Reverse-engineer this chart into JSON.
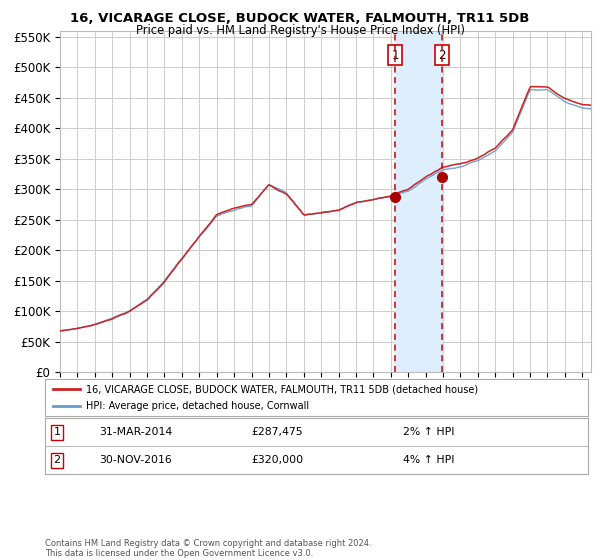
{
  "title": "16, VICARAGE CLOSE, BUDOCK WATER, FALMOUTH, TR11 5DB",
  "subtitle": "Price paid vs. HM Land Registry's House Price Index (HPI)",
  "legend_line1": "16, VICARAGE CLOSE, BUDOCK WATER, FALMOUTH, TR11 5DB (detached house)",
  "legend_line2": "HPI: Average price, detached house, Cornwall",
  "transaction1_date": "31-MAR-2014",
  "transaction1_price": "£287,475",
  "transaction1_hpi": "2% ↑ HPI",
  "transaction1_year": 2014.25,
  "transaction1_value": 287475,
  "transaction2_date": "30-NOV-2016",
  "transaction2_price": "£320,000",
  "transaction2_hpi": "4% ↑ HPI",
  "transaction2_year": 2016.917,
  "transaction2_value": 320000,
  "hpi_shade_color": "#ddeeff",
  "vline_color": "#cc0000",
  "red_line_color": "#cc2222",
  "blue_line_color": "#6699cc",
  "dot_color": "#aa0000",
  "grid_color": "#cccccc",
  "bg_color": "#ffffff",
  "ylim": [
    0,
    560000
  ],
  "xlim": [
    1995,
    2025.5
  ],
  "knots_x": [
    1995,
    1996,
    1997,
    1998,
    1999,
    2000,
    2001,
    2002,
    2003,
    2004,
    2005,
    2006,
    2007,
    2008,
    2009,
    2010,
    2011,
    2012,
    2013,
    2014,
    2015,
    2016,
    2017,
    2018,
    2019,
    2020,
    2021,
    2022,
    2023,
    2024,
    2025,
    2026
  ],
  "knots_hpi": [
    68000,
    72000,
    78000,
    88000,
    100000,
    118000,
    148000,
    185000,
    220000,
    255000,
    265000,
    270000,
    305000,
    290000,
    255000,
    258000,
    262000,
    275000,
    280000,
    285000,
    295000,
    315000,
    330000,
    335000,
    345000,
    360000,
    390000,
    460000,
    460000,
    440000,
    430000,
    428000
  ],
  "footer_text": "Contains HM Land Registry data © Crown copyright and database right 2024.\nThis data is licensed under the Open Government Licence v3.0."
}
